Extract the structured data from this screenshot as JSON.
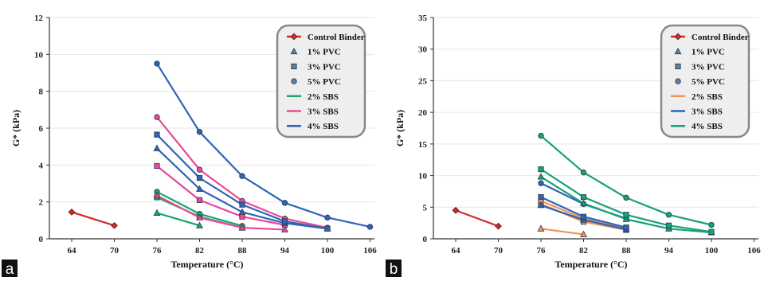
{
  "colors": {
    "control": "#d42a2a",
    "pvc_marker": "#5b7fa3",
    "green": "#1aa56a",
    "pink": "#e84a9a",
    "blue": "#2e64b8",
    "orange": "#f0935a",
    "teal": "#18a07a",
    "legend_border": "#888888",
    "legend_bg": "#eeeeee",
    "grid": "#e6e6e6"
  },
  "chart_data": [
    {
      "type": "line",
      "panel_label": "a",
      "xlabel": "Temperature (°C)",
      "ylabel": "G* (kPa)",
      "x_ticks": [
        "64",
        "70",
        "76",
        "82",
        "88",
        "94",
        "100",
        "106"
      ],
      "y_ticks": [
        "0",
        "2",
        "4",
        "6",
        "8",
        "10",
        "12"
      ],
      "ylim": [
        0,
        12
      ],
      "legend_position": "top-right",
      "legend": [
        {
          "label": "Control Binder",
          "kind": "line-diamond",
          "color": "control"
        },
        {
          "label": "1% PVC",
          "kind": "marker-triangle",
          "color": "pvc_marker"
        },
        {
          "label": "3% PVC",
          "kind": "marker-square",
          "color": "pvc_marker"
        },
        {
          "label": "5% PVC",
          "kind": "marker-circle",
          "color": "pvc_marker"
        },
        {
          "label": "2% SBS",
          "kind": "line",
          "color": "green"
        },
        {
          "label": "3% SBS",
          "kind": "line",
          "color": "pink"
        },
        {
          "label": "4% SBS",
          "kind": "line",
          "color": "blue"
        }
      ],
      "series": [
        {
          "name": "Control Binder",
          "color": "control",
          "marker": "diamond",
          "x": [
            64,
            70
          ],
          "y": [
            1.45,
            0.72
          ]
        },
        {
          "color": "green",
          "marker": "triangle",
          "x": [
            76,
            82
          ],
          "y": [
            1.4,
            0.72
          ]
        },
        {
          "color": "green",
          "marker": "square",
          "x": [
            76,
            82,
            88
          ],
          "y": [
            2.25,
            1.2,
            0.6
          ]
        },
        {
          "color": "green",
          "marker": "circle",
          "x": [
            76,
            82,
            88
          ],
          "y": [
            2.55,
            1.35,
            0.7
          ]
        },
        {
          "color": "pink",
          "marker": "triangle",
          "x": [
            76,
            82,
            88,
            94
          ],
          "y": [
            2.35,
            1.15,
            0.6,
            0.5
          ]
        },
        {
          "color": "pink",
          "marker": "square",
          "x": [
            76,
            82,
            88,
            94
          ],
          "y": [
            3.95,
            2.1,
            1.2,
            0.75
          ]
        },
        {
          "color": "pink",
          "marker": "circle",
          "x": [
            76,
            82,
            88,
            94,
            100
          ],
          "y": [
            6.6,
            3.75,
            2.05,
            1.1,
            0.6
          ]
        },
        {
          "color": "blue",
          "marker": "triangle",
          "x": [
            76,
            82,
            88,
            94,
            100
          ],
          "y": [
            4.9,
            2.7,
            1.45,
            0.85,
            0.55
          ]
        },
        {
          "color": "blue",
          "marker": "square",
          "x": [
            76,
            82,
            88,
            94,
            100
          ],
          "y": [
            5.65,
            3.3,
            1.85,
            0.95,
            0.55
          ]
        },
        {
          "color": "blue",
          "marker": "circle",
          "x": [
            76,
            82,
            88,
            94,
            100,
            106
          ],
          "y": [
            9.5,
            5.8,
            3.4,
            1.95,
            1.15,
            0.65
          ]
        }
      ]
    },
    {
      "type": "line",
      "panel_label": "b",
      "xlabel": "Temperature (°C)",
      "ylabel": "G* (kPa)",
      "x_ticks": [
        "64",
        "70",
        "76",
        "82",
        "88",
        "94",
        "100",
        "106"
      ],
      "y_ticks": [
        "0",
        "5",
        "10",
        "15",
        "20",
        "25",
        "30",
        "35"
      ],
      "ylim": [
        0,
        35
      ],
      "legend_position": "top-right",
      "legend": [
        {
          "label": "Control Binder",
          "kind": "line-diamond",
          "color": "control"
        },
        {
          "label": "1% PVC",
          "kind": "marker-triangle",
          "color": "pvc_marker"
        },
        {
          "label": "3% PVC",
          "kind": "marker-square",
          "color": "pvc_marker"
        },
        {
          "label": "5% PVC",
          "kind": "marker-circle",
          "color": "pvc_marker"
        },
        {
          "label": "2% SBS",
          "kind": "line",
          "color": "orange"
        },
        {
          "label": "3% SBS",
          "kind": "line",
          "color": "blue"
        },
        {
          "label": "4% SBS",
          "kind": "line",
          "color": "teal"
        }
      ],
      "series": [
        {
          "name": "Control Binder",
          "color": "control",
          "marker": "diamond",
          "x": [
            64,
            70
          ],
          "y": [
            4.5,
            2.0
          ]
        },
        {
          "color": "orange",
          "marker": "triangle",
          "x": [
            76,
            82
          ],
          "y": [
            1.6,
            0.7
          ]
        },
        {
          "color": "orange",
          "marker": "square",
          "x": [
            76,
            82,
            88
          ],
          "y": [
            5.5,
            2.7,
            1.4
          ]
        },
        {
          "color": "orange",
          "marker": "circle",
          "x": [
            76,
            82,
            88
          ],
          "y": [
            6.0,
            3.2,
            1.6
          ]
        },
        {
          "color": "blue",
          "marker": "triangle",
          "x": [
            76,
            82,
            88
          ],
          "y": [
            5.3,
            3.0,
            1.5
          ]
        },
        {
          "color": "blue",
          "marker": "square",
          "x": [
            76,
            82,
            88
          ],
          "y": [
            6.6,
            3.5,
            1.8
          ]
        },
        {
          "color": "blue",
          "marker": "circle",
          "x": [
            76,
            82,
            88
          ],
          "y": [
            8.8,
            5.5,
            3.2
          ]
        },
        {
          "color": "teal",
          "marker": "triangle",
          "x": [
            76,
            82,
            88,
            94,
            100
          ],
          "y": [
            9.8,
            5.6,
            3.1,
            1.6,
            1.0
          ]
        },
        {
          "color": "teal",
          "marker": "square",
          "x": [
            76,
            82,
            88,
            94,
            100
          ],
          "y": [
            11.0,
            6.6,
            3.8,
            2.1,
            1.1
          ]
        },
        {
          "color": "teal",
          "marker": "circle",
          "x": [
            76,
            82,
            88,
            94,
            100
          ],
          "y": [
            16.3,
            10.5,
            6.5,
            3.8,
            2.2
          ]
        }
      ]
    }
  ]
}
